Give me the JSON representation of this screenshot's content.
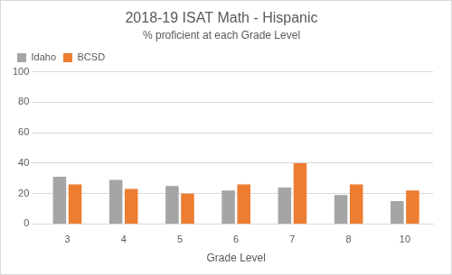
{
  "chart_data": {
    "type": "bar",
    "title": "2018-19 ISAT Math - Hispanic",
    "subtitle": "% proficient at each Grade Level",
    "x_label": "Grade Level",
    "categories": [
      "3",
      "4",
      "5",
      "6",
      "7",
      "8",
      "10"
    ],
    "series": [
      {
        "name": "Idaho",
        "color": "#a5a5a5",
        "values": [
          31,
          29,
          25,
          22,
          24,
          19,
          15
        ]
      },
      {
        "name": "BCSD",
        "color": "#ed7d31",
        "values": [
          26,
          23,
          20,
          26,
          40,
          26,
          22
        ]
      }
    ],
    "ylim": [
      0,
      100
    ],
    "yticks": [
      0,
      20,
      40,
      60,
      80,
      100
    ],
    "grid": true,
    "legend": "top-left"
  }
}
